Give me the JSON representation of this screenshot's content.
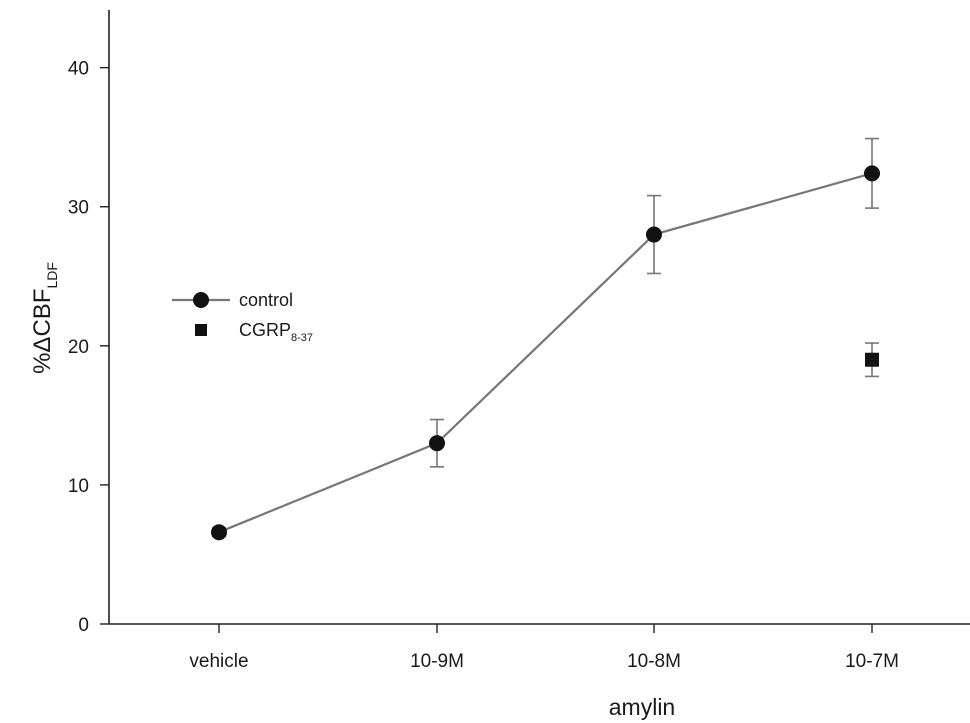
{
  "chart_data": {
    "type": "line",
    "categories": [
      "vehicle",
      "10-9M",
      "10-8M",
      "10-7M"
    ],
    "xlabel": "amylin",
    "ylabel": {
      "main": "%ΔCBF",
      "sub": "LDF"
    },
    "yticks": [
      "0",
      "10",
      "20",
      "30",
      "40"
    ],
    "ylim": [
      0,
      44
    ],
    "grid": false,
    "legend_position": "left",
    "series": [
      {
        "name": "control",
        "name_sub": "",
        "marker": "circle",
        "connected": true,
        "values": [
          6.6,
          13.0,
          28.0,
          32.4
        ],
        "errors": [
          0.3,
          1.7,
          2.8,
          2.5
        ]
      },
      {
        "name": "CGRP",
        "name_sub": "8-37",
        "marker": "square",
        "connected": false,
        "values": [
          null,
          null,
          null,
          19.0
        ],
        "errors": [
          null,
          null,
          null,
          1.2
        ]
      }
    ],
    "colors": {
      "line": "#777777",
      "marker": "#111111",
      "axis": "#222222"
    }
  }
}
